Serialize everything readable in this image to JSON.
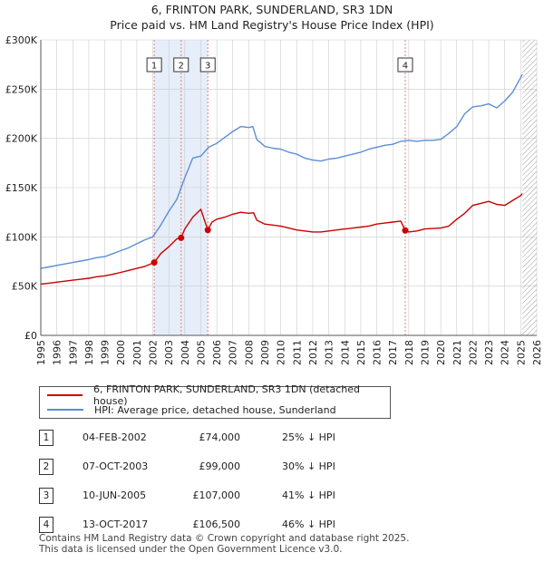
{
  "title_line1": "6, FRINTON PARK, SUNDERLAND, SR3 1DN",
  "title_line2": "Price paid vs. HM Land Registry's House Price Index (HPI)",
  "legend": {
    "property": "6, FRINTON PARK, SUNDERLAND, SR3 1DN (detached house)",
    "hpi": "HPI: Average price, detached house, Sunderland"
  },
  "colors": {
    "property": "#cc0000",
    "hpi": "#5b8ed6",
    "band": "#e6eef9",
    "vline": "#e08080",
    "grid": "#cccccc"
  },
  "transactions": [
    {
      "num": "1",
      "date": "04-FEB-2002",
      "price": "£74,000",
      "diff": "25% ↓ HPI"
    },
    {
      "num": "2",
      "date": "07-OCT-2003",
      "price": "£99,000",
      "diff": "30% ↓ HPI"
    },
    {
      "num": "3",
      "date": "10-JUN-2005",
      "price": "£107,000",
      "diff": "41% ↓ HPI"
    },
    {
      "num": "4",
      "date": "13-OCT-2017",
      "price": "£106,500",
      "diff": "46% ↓ HPI"
    }
  ],
  "footer_line1": "Contains HM Land Registry data © Crown copyright and database right 2025.",
  "footer_line2": "This data is licensed under the Open Government Licence v3.0.",
  "chart_data": {
    "type": "line",
    "x_range": [
      1995,
      2026
    ],
    "y_range": [
      0,
      300000
    ],
    "y_ticks": [
      0,
      50000,
      100000,
      150000,
      200000,
      250000,
      300000
    ],
    "y_tick_labels": [
      "£0",
      "£50K",
      "£100K",
      "£150K",
      "£200K",
      "£250K",
      "£300K"
    ],
    "x_ticks": [
      1995,
      1996,
      1997,
      1998,
      1999,
      2000,
      2001,
      2002,
      2003,
      2004,
      2005,
      2006,
      2007,
      2008,
      2009,
      2010,
      2011,
      2012,
      2013,
      2014,
      2015,
      2016,
      2017,
      2018,
      2019,
      2020,
      2021,
      2022,
      2023,
      2024,
      2025,
      2026
    ],
    "x_tick_labels": [
      "1995",
      "1996",
      "1997",
      "1998",
      "1999",
      "2000",
      "2001",
      "2002",
      "2003",
      "2004",
      "2005",
      "2006",
      "2007",
      "2008",
      "2009",
      "2010",
      "2011",
      "2012",
      "2013",
      "2014",
      "2015",
      "2016",
      "2017",
      "2018",
      "2019",
      "2020",
      "2021",
      "2022",
      "2023",
      "2024",
      "2025",
      "2026"
    ],
    "hatch_from": 2025.1,
    "sales": [
      {
        "label": "1",
        "x": 2002.09,
        "y": 74000
      },
      {
        "label": "2",
        "x": 2003.77,
        "y": 99000
      },
      {
        "label": "3",
        "x": 2005.44,
        "y": 107000
      },
      {
        "label": "4",
        "x": 2017.78,
        "y": 106500
      }
    ],
    "series": [
      {
        "name": "HPI: Average price, detached house, Sunderland",
        "x": [
          1995,
          1995.5,
          1996,
          1996.5,
          1997,
          1997.5,
          1998,
          1998.5,
          1999,
          1999.5,
          2000,
          2000.5,
          2001,
          2001.5,
          2002,
          2002.5,
          2003,
          2003.5,
          2004,
          2004.5,
          2005,
          2005.5,
          2006,
          2006.5,
          2007,
          2007.5,
          2008,
          2008.25,
          2008.5,
          2009,
          2009.5,
          2010,
          2010.5,
          2011,
          2011.5,
          2012,
          2012.5,
          2013,
          2013.5,
          2014,
          2014.5,
          2015,
          2015.5,
          2016,
          2016.5,
          2017,
          2017.5,
          2018,
          2018.5,
          2019,
          2019.5,
          2020,
          2020.5,
          2021,
          2021.5,
          2022,
          2022.5,
          2023,
          2023.5,
          2024,
          2024.5,
          2025,
          2025.1
        ],
        "values": [
          68000,
          69500,
          71000,
          72500,
          74000,
          75500,
          77000,
          79000,
          80000,
          83000,
          86000,
          89000,
          93000,
          97000,
          100000,
          112000,
          126000,
          138000,
          160000,
          180000,
          182000,
          191000,
          195000,
          201000,
          207000,
          212000,
          211000,
          212000,
          199000,
          192000,
          190000,
          189000,
          186000,
          184000,
          180000,
          178000,
          177000,
          179000,
          180000,
          182000,
          184000,
          186000,
          189000,
          191000,
          193000,
          194000,
          197000,
          198000,
          197000,
          198000,
          198000,
          199000,
          205000,
          212000,
          225000,
          232000,
          233000,
          235000,
          231000,
          238000,
          247000,
          262000,
          265000
        ]
      },
      {
        "name": "6, FRINTON PARK, SUNDERLAND, SR3 1DN (detached house)",
        "x": [
          1995,
          1995.5,
          1996,
          1996.5,
          1997,
          1997.5,
          1998,
          1998.5,
          1999,
          1999.5,
          2000,
          2000.5,
          2001,
          2001.5,
          2002.09,
          2002.5,
          2003,
          2003.5,
          2003.77,
          2004,
          2004.5,
          2005,
          2005.44,
          2005.7,
          2006,
          2006.5,
          2007,
          2007.5,
          2008,
          2008.3,
          2008.5,
          2009,
          2009.5,
          2010,
          2010.5,
          2011,
          2011.5,
          2012,
          2012.5,
          2013,
          2013.5,
          2014,
          2014.5,
          2015,
          2015.5,
          2016,
          2016.5,
          2017,
          2017.5,
          2017.78,
          2018,
          2018.5,
          2019,
          2019.5,
          2020,
          2020.5,
          2021,
          2021.5,
          2022,
          2022.5,
          2023,
          2023.5,
          2024,
          2024.5,
          2025,
          2025.1
        ],
        "values": [
          52000,
          53000,
          54000,
          55000,
          56000,
          57000,
          58000,
          59500,
          60500,
          62000,
          64000,
          66000,
          68000,
          70000,
          74000,
          83000,
          90000,
          98000,
          99000,
          108000,
          120000,
          128000,
          107000,
          115000,
          118000,
          120000,
          123000,
          125000,
          124000,
          124500,
          117000,
          113000,
          112000,
          111000,
          109000,
          107000,
          106000,
          105000,
          105000,
          106000,
          107000,
          108000,
          109000,
          110000,
          111000,
          113000,
          114000,
          115000,
          116000,
          106500,
          105000,
          106000,
          108000,
          108500,
          109000,
          111000,
          118000,
          124000,
          132000,
          134000,
          136000,
          133000,
          132000,
          137000,
          142000,
          144000
        ]
      }
    ]
  }
}
